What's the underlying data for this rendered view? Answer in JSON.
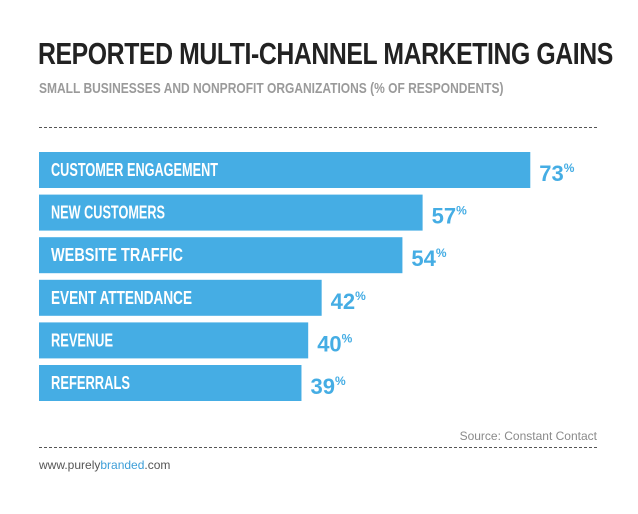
{
  "chart_data": {
    "type": "bar",
    "orientation": "horizontal",
    "title": "REPORTED MULTI-CHANNEL MARKETING GAINS",
    "subtitle": "SMALL BUSINESSES AND NONPROFIT ORGANIZATIONS (% OF RESPONDENTS)",
    "categories": [
      "CUSTOMER ENGAGEMENT",
      "NEW CUSTOMERS",
      "WEBSITE TRAFFIC",
      "EVENT ATTENDANCE",
      "REVENUE",
      "REFERRALS"
    ],
    "values": [
      73,
      57,
      54,
      42,
      40,
      39
    ],
    "unit": "%",
    "xlim": [
      0,
      100
    ],
    "grid": false,
    "legend": "none",
    "bar_color": "#45ade4",
    "value_color": "#45ade4"
  },
  "source": "Source: Constant Contact",
  "footer": {
    "prefix": "www.purely",
    "accent": "branded",
    "suffix": ".com",
    "accent_color": "#3d9ed8"
  }
}
